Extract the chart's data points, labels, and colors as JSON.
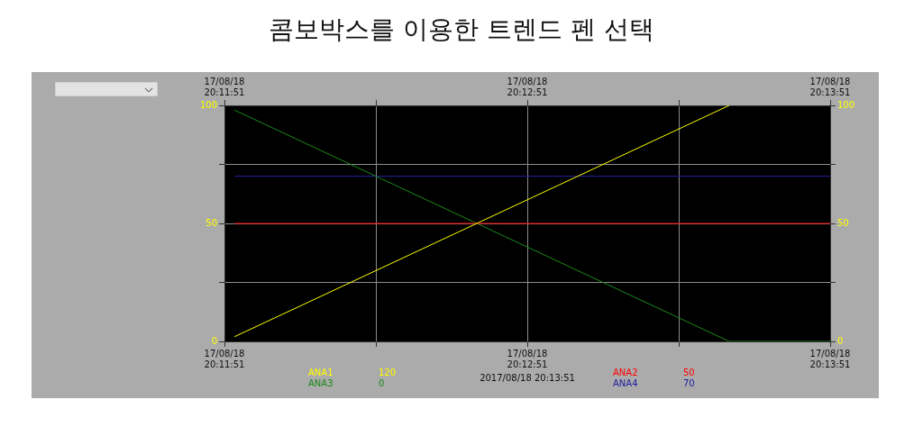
{
  "chart_data": {
    "type": "line",
    "title": "콤보박스를 이용한 트렌드 펜 선택",
    "series": [
      {
        "name": "ANA1",
        "color": "#ffff00",
        "x": [
          "2017-08-18T20:11:53",
          "2017-08-18T20:13:31"
        ],
        "values": [
          2,
          100
        ]
      },
      {
        "name": "ANA2",
        "color": "#ff0000",
        "x": [
          "2017-08-18T20:11:53",
          "2017-08-18T20:13:51"
        ],
        "values": [
          50,
          50
        ]
      },
      {
        "name": "ANA3",
        "color": "#1a8a1a",
        "x": [
          "2017-08-18T20:11:53",
          "2017-08-18T20:13:31",
          "2017-08-18T20:13:51"
        ],
        "values": [
          98,
          0,
          0
        ]
      },
      {
        "name": "ANA4",
        "color": "#2020a0",
        "x": [
          "2017-08-18T20:11:53",
          "2017-08-18T20:13:51"
        ],
        "values": [
          70,
          70
        ]
      }
    ],
    "xlim": [
      "2017-08-18T20:11:51",
      "2017-08-18T20:13:51"
    ],
    "xticks": [
      {
        "value": "2017-08-18T20:11:51",
        "label": "17/08/18\n20:11:51"
      },
      {
        "value": "2017-08-18T20:12:21",
        "label": null
      },
      {
        "value": "2017-08-18T20:12:51",
        "label": "17/08/18\n20:12:51"
      },
      {
        "value": "2017-08-18T20:13:21",
        "label": null
      },
      {
        "value": "2017-08-18T20:13:51",
        "label": "17/08/18\n20:13:51"
      }
    ],
    "x2lim": [
      "2017-08-18T20:11:51",
      "2017-08-18T20:13:51"
    ],
    "x2ticks": [
      {
        "value": "2017-08-18T20:11:51",
        "label": "17/08/18\n20:11:51"
      },
      {
        "value": "2017-08-18T20:12:21",
        "label": null
      },
      {
        "value": "2017-08-18T20:12:51",
        "label": "17/08/18\n20:12:51"
      },
      {
        "value": "2017-08-18T20:13:21",
        "label": null
      },
      {
        "value": "2017-08-18T20:13:51",
        "label": "17/08/18\n20:13:51"
      }
    ],
    "ylim": [
      0,
      100
    ],
    "yticks": [
      0,
      {
        "value": 25,
        "label": null
      },
      50,
      {
        "value": 75,
        "label": null
      },
      100
    ],
    "y2lim": [
      0,
      100
    ],
    "y2ticks": [
      0,
      {
        "value": 25,
        "label": null
      },
      50,
      {
        "value": 75,
        "label": null
      },
      100
    ],
    "grid": true,
    "legend": "bottom",
    "marker": "none",
    "line_style": "solid",
    "annotations": [
      "2017/08/18 20:13:51",
      "120",
      "50",
      "0",
      "70"
    ]
  }
}
